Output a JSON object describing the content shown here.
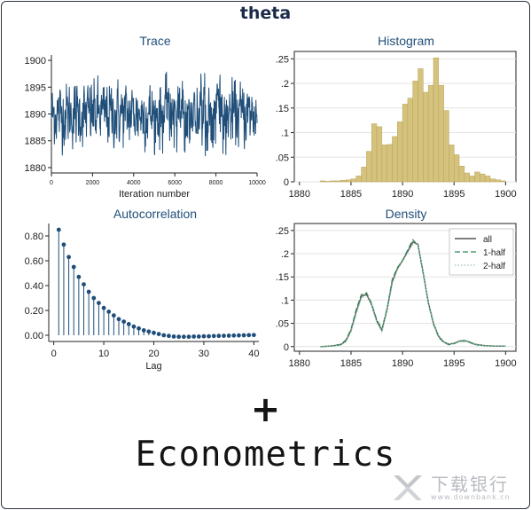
{
  "title": "theta",
  "tagline": "Econometrics",
  "plus": "+",
  "watermark": {
    "text": "下载银行",
    "url_text": "www.downbank.cn"
  },
  "colors": {
    "trace": "#1f4e79",
    "hist_fill": "#d4c27d",
    "hist_edge": "#b8a55c",
    "acf": "#1f4e79",
    "density_all": "#555555",
    "density_half1": "#2e8b57",
    "density_half2": "#9ec4b0"
  },
  "chart_data": [
    {
      "type": "line",
      "title": "Trace",
      "xlabel": "Iteration number",
      "ylabel": "",
      "xlim": [
        0,
        10000
      ],
      "ylim": [
        1879,
        1901
      ],
      "xticks": [
        0,
        2000,
        4000,
        6000,
        8000,
        10000
      ],
      "yticks": [
        1880,
        1885,
        1890,
        1895,
        1900
      ],
      "series": [
        {
          "name": "",
          "n": 10000,
          "range": [
            1882,
            1898
          ],
          "center": 1890
        }
      ]
    },
    {
      "type": "bar",
      "title": "Histogram",
      "xlabel": "",
      "ylabel": "",
      "xlim": [
        1879.5,
        1901
      ],
      "ylim": [
        0,
        0.265
      ],
      "xticks": [
        1880,
        1885,
        1890,
        1895,
        1900
      ],
      "yticks": [
        0,
        0.05,
        0.1,
        0.15,
        0.2,
        0.25
      ],
      "ytick_labels": [
        "0",
        ".05",
        ".1",
        ".15",
        ".2",
        ".25"
      ],
      "bin_start": 1882.0,
      "bin_width": 0.5,
      "values": [
        0.002,
        0.001,
        0.002,
        0.002,
        0.003,
        0.004,
        0.006,
        0.012,
        0.03,
        0.062,
        0.118,
        0.112,
        0.075,
        0.076,
        0.092,
        0.122,
        0.158,
        0.17,
        0.205,
        0.23,
        0.182,
        0.196,
        0.252,
        0.196,
        0.145,
        0.075,
        0.055,
        0.032,
        0.018,
        0.012,
        0.02,
        0.016,
        0.012,
        0.006,
        0.004,
        0.002
      ]
    },
    {
      "type": "scatter",
      "title": "Autocorrelation",
      "xlabel": "Lag",
      "ylabel": "",
      "xlim": [
        -1,
        41
      ],
      "ylim": [
        -0.05,
        0.9
      ],
      "xticks": [
        0,
        10,
        20,
        30,
        40
      ],
      "yticks": [
        0,
        0.2,
        0.4,
        0.6,
        0.8
      ],
      "ytick_labels": [
        "0.00",
        "0.20",
        "0.40",
        "0.60",
        "0.80"
      ],
      "x": [
        1,
        2,
        3,
        4,
        5,
        6,
        7,
        8,
        9,
        10,
        11,
        12,
        13,
        14,
        15,
        16,
        17,
        18,
        19,
        20,
        21,
        22,
        23,
        24,
        25,
        26,
        27,
        28,
        29,
        30,
        31,
        32,
        33,
        34,
        35,
        36,
        37,
        38,
        39,
        40
      ],
      "values": [
        0.85,
        0.73,
        0.63,
        0.55,
        0.47,
        0.41,
        0.35,
        0.3,
        0.26,
        0.22,
        0.19,
        0.16,
        0.13,
        0.11,
        0.09,
        0.07,
        0.055,
        0.04,
        0.03,
        0.02,
        0.01,
        0.0,
        -0.005,
        -0.01,
        -0.012,
        -0.012,
        -0.012,
        -0.01,
        -0.01,
        -0.008,
        -0.008,
        -0.006,
        -0.005,
        -0.004,
        -0.003,
        -0.002,
        -0.001,
        0.0,
        0.001,
        0.002
      ]
    },
    {
      "type": "line",
      "title": "Density",
      "xlabel": "",
      "ylabel": "",
      "xlim": [
        1879.5,
        1901
      ],
      "ylim": [
        -0.01,
        0.265
      ],
      "xticks": [
        1880,
        1885,
        1890,
        1895,
        1900
      ],
      "yticks": [
        0,
        0.05,
        0.1,
        0.15,
        0.2,
        0.25
      ],
      "ytick_labels": [
        "0",
        ".05",
        ".1",
        ".15",
        ".2",
        ".25"
      ],
      "legend_position": "top-right",
      "x": [
        1882,
        1883,
        1884,
        1884.5,
        1885,
        1885.5,
        1886,
        1886.5,
        1887,
        1887.5,
        1888,
        1888.5,
        1889,
        1889.5,
        1890,
        1890.5,
        1891,
        1891.5,
        1892,
        1892.5,
        1893,
        1893.5,
        1894,
        1894.5,
        1895,
        1895.5,
        1896,
        1896.5,
        1897,
        1898,
        1899,
        1900
      ],
      "series": [
        {
          "name": "all",
          "values": [
            0.0,
            0.001,
            0.004,
            0.012,
            0.035,
            0.075,
            0.108,
            0.113,
            0.09,
            0.055,
            0.035,
            0.08,
            0.14,
            0.168,
            0.185,
            0.205,
            0.225,
            0.22,
            0.16,
            0.095,
            0.05,
            0.022,
            0.01,
            0.005,
            0.007,
            0.012,
            0.013,
            0.01,
            0.005,
            0.002,
            0.001,
            0.001
          ]
        },
        {
          "name": "1-half",
          "values": [
            0.0,
            0.001,
            0.005,
            0.014,
            0.038,
            0.08,
            0.112,
            0.116,
            0.093,
            0.058,
            0.038,
            0.083,
            0.145,
            0.17,
            0.186,
            0.208,
            0.23,
            0.218,
            0.158,
            0.093,
            0.048,
            0.02,
            0.009,
            0.004,
            0.006,
            0.011,
            0.012,
            0.009,
            0.004,
            0.002,
            0.001,
            0.001
          ]
        },
        {
          "name": "2-half",
          "values": [
            0.0,
            0.001,
            0.003,
            0.01,
            0.032,
            0.07,
            0.104,
            0.11,
            0.088,
            0.052,
            0.032,
            0.077,
            0.135,
            0.165,
            0.183,
            0.202,
            0.22,
            0.222,
            0.163,
            0.097,
            0.052,
            0.024,
            0.011,
            0.006,
            0.008,
            0.013,
            0.014,
            0.011,
            0.006,
            0.002,
            0.001,
            0.001
          ]
        }
      ]
    }
  ]
}
